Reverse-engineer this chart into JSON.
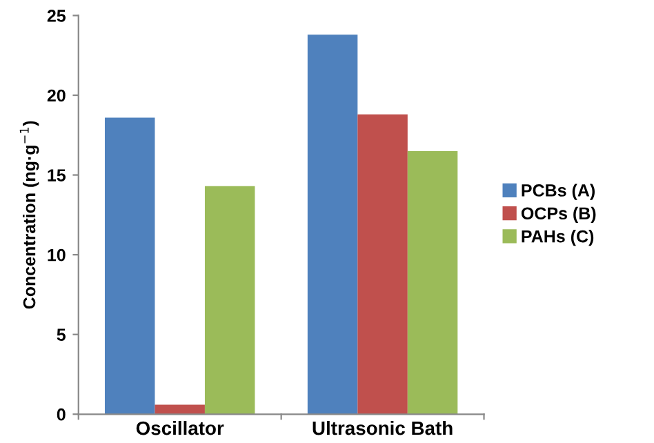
{
  "chart_data": {
    "type": "bar",
    "ylabel": "Concentration (ng·g$^{−1}$)",
    "categories": [
      "Oscillator",
      "Ultrasonic Bath"
    ],
    "series": [
      {
        "name": "PCBs (A)",
        "color": "#4f81bd",
        "values": [
          18.6,
          23.8
        ]
      },
      {
        "name": "OCPs (B)",
        "color": "#c0504d",
        "values": [
          0.6,
          18.8
        ]
      },
      {
        "name": "PAHs (C)",
        "color": "#9bbb59",
        "values": [
          14.3,
          16.5
        ]
      }
    ],
    "ylim": [
      0,
      25
    ],
    "yticks": [
      0,
      5,
      10,
      15,
      20,
      25
    ],
    "grid": false,
    "legend": "right"
  }
}
